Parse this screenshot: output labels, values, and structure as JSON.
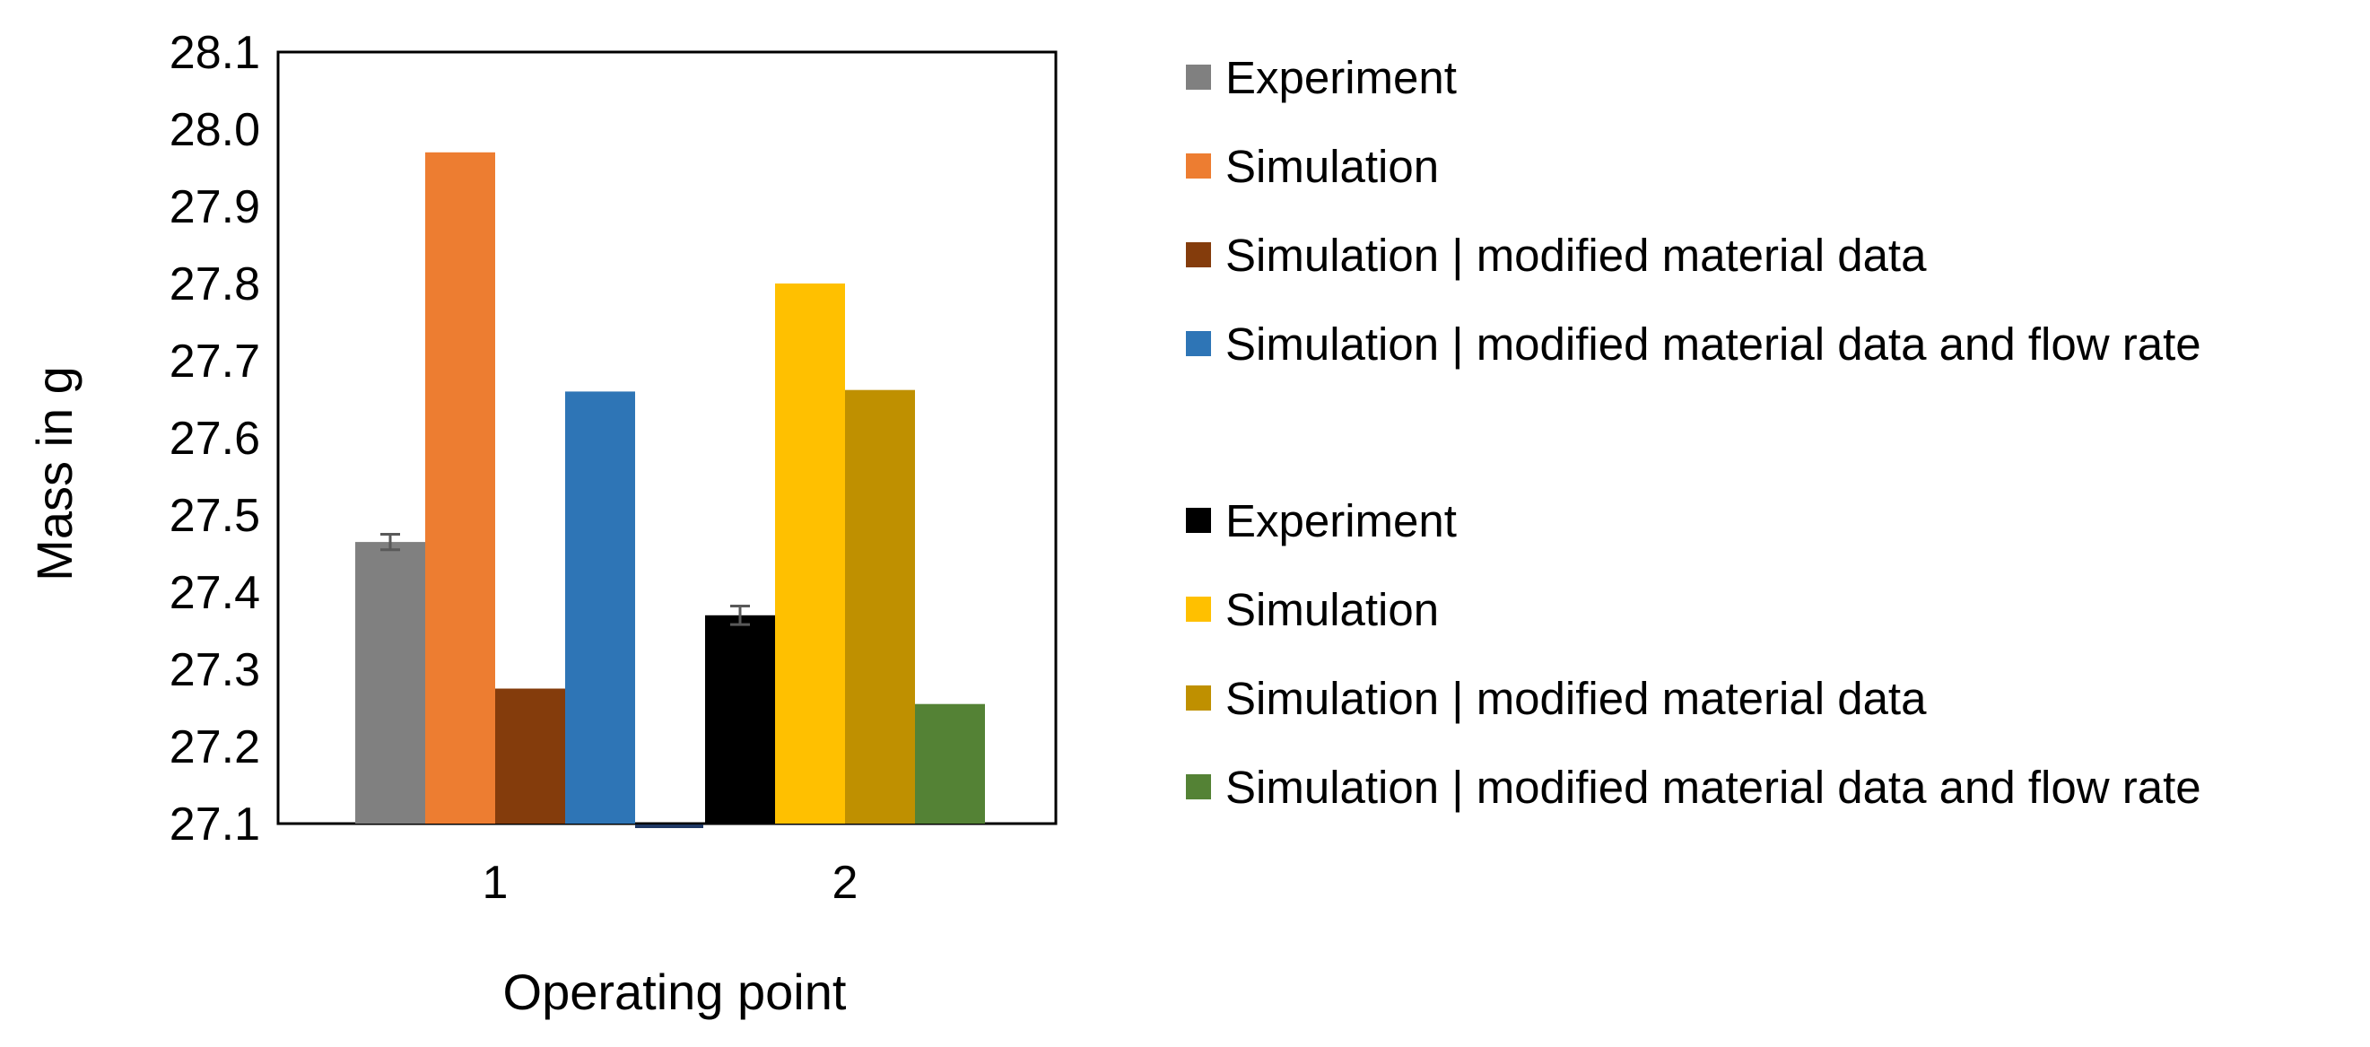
{
  "chart_data": {
    "type": "bar",
    "title": "",
    "xlabel": "Operating point",
    "ylabel": "Mass in g",
    "ylim": [
      27.1,
      28.1
    ],
    "yticks": [
      "27.1",
      "27.2",
      "27.3",
      "27.4",
      "27.5",
      "27.6",
      "27.7",
      "27.8",
      "27.9",
      "28.0",
      "28.1"
    ],
    "grid": false,
    "legend_position": "right",
    "categories": [
      "1",
      "2"
    ],
    "groups": [
      {
        "category": "1",
        "series": [
          {
            "name": "Experiment",
            "value": 27.465,
            "error": 0.01,
            "color": "#808080"
          },
          {
            "name": "Simulation",
            "value": 27.97,
            "color": "#ED7D31"
          },
          {
            "name": "Simulation | modified material data",
            "value": 27.275,
            "color": "#843C0C"
          },
          {
            "name": "Simulation | modified material data and flow rate",
            "value": 27.66,
            "color": "#2E75B6"
          }
        ]
      },
      {
        "category": "2",
        "series": [
          {
            "name": "Experiment",
            "value": 27.37,
            "error": 0.012,
            "color": "#000000"
          },
          {
            "name": "Simulation",
            "value": 27.8,
            "color": "#FFC000"
          },
          {
            "name": "Simulation | modified material data",
            "value": 27.662,
            "color": "#BF9000"
          },
          {
            "name": "Simulation | modified material data and flow rate",
            "value": 27.255,
            "color": "#548235"
          }
        ]
      }
    ],
    "legend": [
      {
        "label": "Experiment",
        "color": "#808080"
      },
      {
        "label": "Simulation",
        "color": "#ED7D31"
      },
      {
        "label": "Simulation | modified material data",
        "color": "#843C0C"
      },
      {
        "label": "Simulation | modified material data and flow rate",
        "color": "#2E75B6"
      },
      {
        "label": "Experiment",
        "color": "#000000"
      },
      {
        "label": "Simulation",
        "color": "#FFC000"
      },
      {
        "label": "Simulation | modified material data",
        "color": "#BF9000"
      },
      {
        "label": "Simulation | modified material data and flow rate",
        "color": "#548235"
      }
    ]
  }
}
